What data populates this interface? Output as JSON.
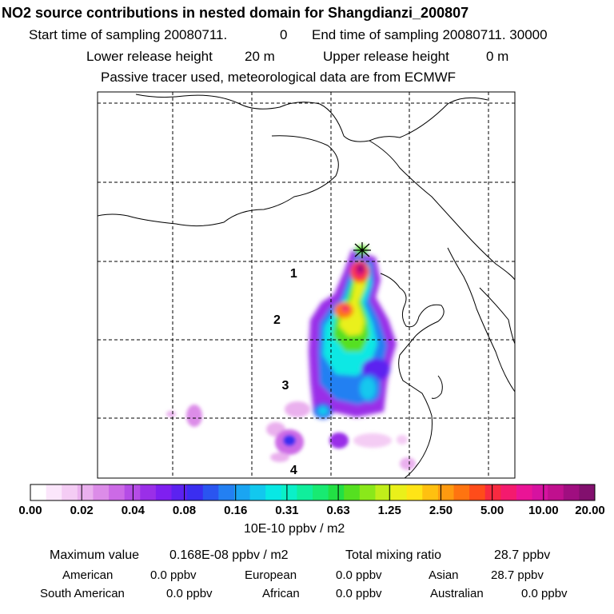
{
  "header": {
    "title": "NO2 source contributions in nested domain for Shangdianzi_200807",
    "start_label": "Start time of sampling 20080711.",
    "start_value": "0",
    "end_label": "End time of sampling 20080711. 30000",
    "lower_label": "Lower release height",
    "lower_value": "20 m",
    "upper_label": "Upper release height",
    "upper_value": "0 m",
    "note": "Passive tracer used, meteorological data are from ECMWF"
  },
  "chart_data": {
    "type": "heatmap",
    "title": "NO2 source contributions in nested domain for Shangdianzi_200807",
    "colorbar": {
      "tick_labels": [
        "0.00",
        "0.02",
        "0.04",
        "0.08",
        "0.16",
        "0.31",
        "0.63",
        "1.25",
        "2.50",
        "5.00",
        "10.00",
        "20.00"
      ],
      "unit": "10E-10 ppbv / m2",
      "colors": [
        "#ffffff",
        "#fbe6fb",
        "#f4ccf4",
        "#eab0ee",
        "#dc8ce8",
        "#cc6ae6",
        "#b54ce6",
        "#9a2fe8",
        "#7f1ff0",
        "#5b22f0",
        "#3a2ef0",
        "#2a55f0",
        "#2380f2",
        "#1aa5f2",
        "#12c8ee",
        "#08e8e4",
        "#0af0c8",
        "#10ee9c",
        "#18ea72",
        "#22e044",
        "#55e020",
        "#8ae81a",
        "#c0ee1a",
        "#eaf01a",
        "#ffe416",
        "#ffc010",
        "#ff9a10",
        "#ff7410",
        "#ff4c1a",
        "#f82a40",
        "#f41a6e",
        "#ea1496",
        "#d612a0",
        "#c0108e",
        "#a00e80",
        "#82106e"
      ]
    },
    "markers": [
      {
        "label": "1",
        "lon_frac": 0.47,
        "lat_frac": 0.48
      },
      {
        "label": "2",
        "lon_frac": 0.43,
        "lat_frac": 0.6
      },
      {
        "label": "3",
        "lon_frac": 0.45,
        "lat_frac": 0.77
      },
      {
        "label": "4",
        "lon_frac": 0.47,
        "lat_frac": 0.99
      }
    ],
    "receptor": "Shangdianzi"
  },
  "footer": {
    "max_label": "Maximum value",
    "max_value": "0.168E-08 ppbv / m2",
    "total_label": "Total mixing ratio",
    "total_value": "28.7 ppbv",
    "regions": [
      {
        "name": "American",
        "value": "0.0 ppbv"
      },
      {
        "name": "European",
        "value": "0.0 ppbv"
      },
      {
        "name": "Asian",
        "value": "28.7 ppbv"
      },
      {
        "name": "South American",
        "value": "0.0 ppbv"
      },
      {
        "name": "African",
        "value": "0.0 ppbv"
      },
      {
        "name": "Australian",
        "value": "0.0 ppbv"
      }
    ]
  }
}
